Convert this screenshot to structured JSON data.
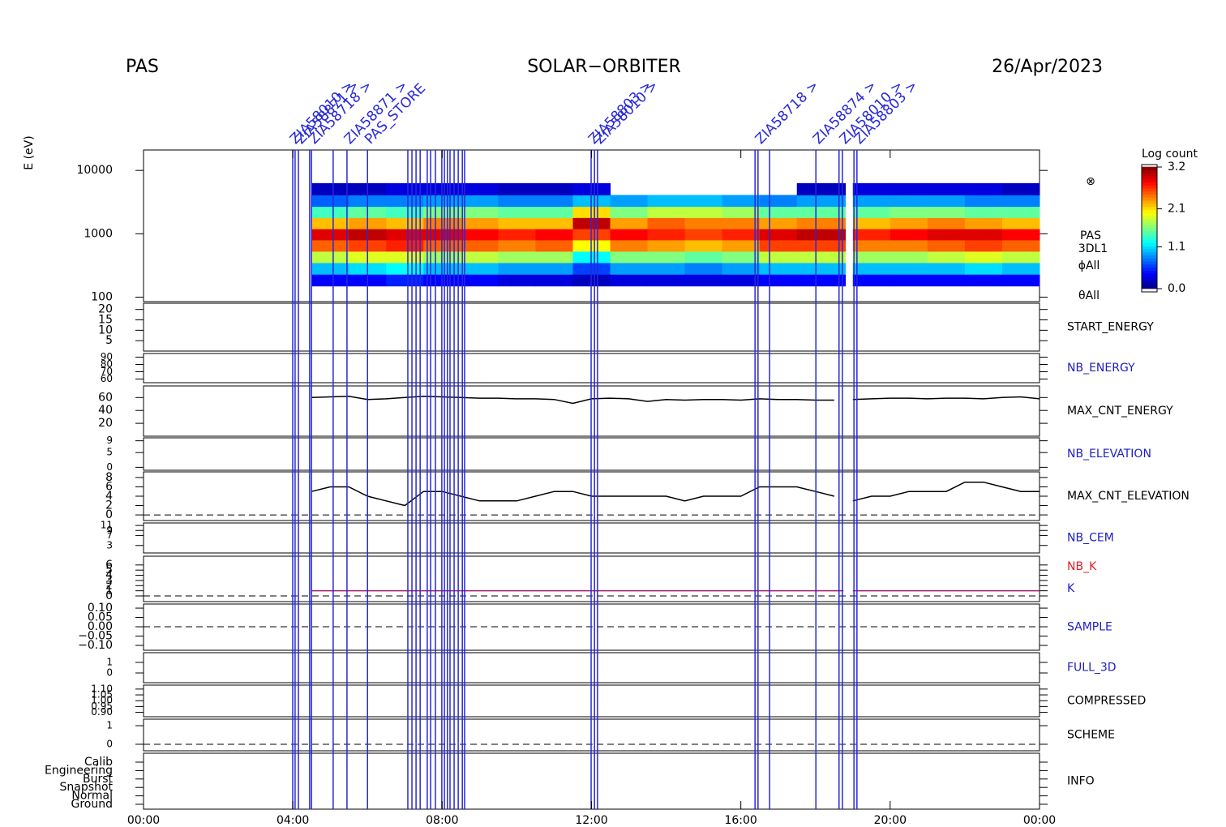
{
  "chart_data": {
    "type": "multipanel",
    "header": {
      "left": "PAS",
      "center": "SOLAR−ORBITER",
      "right": "26/Apr/2023"
    },
    "colorbar": {
      "title": "Log count",
      "ticks": [
        {
          "value": 3.2,
          "label": "3.2"
        },
        {
          "value": 2.1,
          "label": "2.1"
        },
        {
          "value": 1.1,
          "label": "1.1"
        },
        {
          "value": 0,
          "label": "0.0"
        }
      ],
      "lim": [
        0,
        3.2
      ]
    },
    "xlim": [
      0,
      24
    ],
    "xticks": [
      {
        "value": 0,
        "label": "00:00"
      },
      {
        "value": 4,
        "label": "04:00"
      },
      {
        "value": 8,
        "label": "08:00"
      },
      {
        "value": 12,
        "label": "12:00"
      },
      {
        "value": 16,
        "label": "16:00"
      },
      {
        "value": 20,
        "label": "20:00"
      },
      {
        "value": 24,
        "label": "00:00"
      }
    ],
    "panels": [
      {
        "type": "spectrogram",
        "ylabel": "E (eV)",
        "log": true,
        "ylim": [
          85,
          21000
        ],
        "yticks": [
          100,
          1000,
          10000
        ],
        "side_labels": [
          "⊗",
          "PAS",
          "3DL1",
          "ϕAll",
          "θAll"
        ],
        "energy_edges": [
          150,
          230,
          350,
          530,
          800,
          1200,
          1800,
          2700,
          4100,
          6300
        ],
        "t_start": [
          4.5,
          5.5,
          6.5,
          7.5,
          8.5,
          9.5,
          10.5,
          11.5,
          12.5,
          13.5,
          14.5,
          15.5,
          16.5,
          17.5,
          19,
          20,
          21,
          22,
          23
        ],
        "t_end": [
          5.5,
          6.5,
          7.5,
          8.5,
          9.5,
          10.5,
          11.5,
          12.5,
          13.5,
          14.5,
          15.5,
          16.5,
          17.5,
          18.8,
          20,
          21,
          22,
          23,
          24
        ],
        "counts": [
          [
            0.4,
            1.0,
            1.8,
            2.5,
            2.9,
            2.2,
            1.4,
            0.7,
            0.2
          ],
          [
            0.4,
            1.1,
            1.9,
            2.6,
            3.0,
            2.3,
            1.5,
            0.8,
            0.2
          ],
          [
            0.5,
            1.2,
            1.9,
            2.7,
            2.9,
            2.2,
            1.4,
            0.8,
            0.3
          ],
          [
            0.4,
            1.0,
            1.7,
            2.5,
            2.9,
            2.4,
            1.6,
            0.9,
            0.3
          ],
          [
            0.4,
            1.0,
            1.8,
            2.5,
            2.8,
            2.3,
            1.6,
            0.9,
            0.3
          ],
          [
            0.3,
            0.9,
            1.7,
            2.4,
            2.7,
            2.2,
            1.5,
            0.8,
            0.2
          ],
          [
            0.3,
            0.9,
            1.7,
            2.5,
            2.8,
            2.2,
            1.5,
            0.8,
            0.2
          ],
          [
            0.2,
            0.6,
            1.2,
            2.0,
            2.6,
            3.0,
            2.1,
            1.0,
            0.3
          ],
          [
            0.3,
            0.9,
            1.6,
            2.4,
            2.8,
            2.3,
            1.6,
            0.9,
            null
          ],
          [
            0.3,
            0.9,
            1.6,
            2.3,
            2.7,
            2.5,
            1.8,
            1.0,
            null
          ],
          [
            0.3,
            0.8,
            1.5,
            2.2,
            2.6,
            2.4,
            1.8,
            1.0,
            null
          ],
          [
            0.3,
            0.9,
            1.6,
            2.3,
            2.7,
            2.4,
            1.7,
            0.9,
            null
          ],
          [
            0.4,
            1.0,
            1.8,
            2.6,
            2.9,
            2.3,
            1.5,
            0.8,
            null
          ],
          [
            0.4,
            1.0,
            1.8,
            2.6,
            3.0,
            2.4,
            1.5,
            0.9,
            0.2
          ],
          [
            0.4,
            1.0,
            1.7,
            2.4,
            2.7,
            2.2,
            1.5,
            0.9,
            0.3
          ],
          [
            0.4,
            1.0,
            1.7,
            2.4,
            2.8,
            2.3,
            1.6,
            0.9,
            0.3
          ],
          [
            0.4,
            1.0,
            1.8,
            2.5,
            2.9,
            2.4,
            1.6,
            0.9,
            0.3
          ],
          [
            0.4,
            1.1,
            1.9,
            2.6,
            2.9,
            2.3,
            1.5,
            0.8,
            0.3
          ],
          [
            0.4,
            1.0,
            1.8,
            2.5,
            2.8,
            2.2,
            1.5,
            0.8,
            0.2
          ]
        ]
      },
      {
        "type": "empty",
        "names": [
          {
            "text": "START_ENERGY",
            "color": "#000000"
          }
        ],
        "ylim": [
          0,
          23
        ],
        "yticks": [
          5,
          10,
          15,
          20
        ]
      },
      {
        "type": "empty",
        "names": [
          {
            "text": "NB_ENERGY",
            "color": "#2020c0"
          }
        ],
        "ylim": [
          55,
          95
        ],
        "yticks": [
          60,
          70,
          80,
          90
        ]
      },
      {
        "type": "line",
        "names": [
          {
            "text": "MAX_CNT_ENERGY",
            "color": "#000000"
          }
        ],
        "ylim": [
          0,
          78
        ],
        "yticks": [
          20,
          40,
          60
        ],
        "series": [
          {
            "color": "#000000",
            "x": [
              4.5,
              5,
              5.5,
              6,
              6.5,
              7,
              7.5,
              8,
              8.5,
              9,
              9.5,
              10,
              10.5,
              11,
              11.5,
              12,
              12.5,
              13,
              13.5,
              14,
              14.5,
              15,
              15.5,
              16,
              16.5,
              17,
              17.5,
              18,
              18.5,
              18.75,
              19,
              19.5,
              20,
              20.5,
              21,
              21.5,
              22,
              22.5,
              23,
              23.5,
              24
            ],
            "values": [
              60,
              61,
              62,
              57,
              58,
              60,
              62,
              61,
              60,
              59,
              59,
              58,
              58,
              57,
              51,
              58,
              59,
              58,
              54,
              57,
              56,
              57,
              57,
              56,
              58,
              57,
              57,
              56,
              56,
              null,
              57,
              58,
              59,
              59,
              58,
              59,
              59,
              58,
              60,
              61,
              58
            ]
          }
        ]
      },
      {
        "type": "empty",
        "names": [
          {
            "text": "NB_ELEVATION",
            "color": "#2020c0"
          }
        ],
        "ylim": [
          -1,
          10
        ],
        "yticks": [
          0,
          5,
          9
        ]
      },
      {
        "type": "line",
        "names": [
          {
            "text": "MAX_CNT_ELEVATION",
            "color": "#000000"
          }
        ],
        "ylim": [
          -1.2,
          9.2
        ],
        "yticks": [
          0,
          2,
          4,
          6,
          8
        ],
        "dashed_zero": true,
        "series": [
          {
            "color": "#000000",
            "x": [
              4.5,
              5,
              5.5,
              6,
              6.5,
              7,
              7.5,
              8,
              8.5,
              9,
              9.5,
              10,
              10.5,
              11,
              11.5,
              12,
              12.5,
              13,
              13.5,
              14,
              14.5,
              15,
              15.5,
              16,
              16.5,
              17,
              17.5,
              18,
              18.5,
              18.75,
              19,
              19.5,
              20,
              20.5,
              21,
              21.5,
              22,
              22.5,
              23,
              23.5,
              24
            ],
            "values": [
              5,
              6,
              6,
              4,
              3,
              2,
              5,
              5,
              4,
              3,
              3,
              3,
              4,
              5,
              5,
              4,
              4,
              4,
              4,
              4,
              3,
              4,
              4,
              4,
              6,
              6,
              6,
              5,
              4,
              null,
              3,
              4,
              4,
              5,
              5,
              5,
              7,
              7,
              6,
              5,
              5
            ]
          }
        ]
      },
      {
        "type": "empty",
        "names": [
          {
            "text": "NB_CEM",
            "color": "#2020c0"
          }
        ],
        "ylim": [
          0,
          12
        ],
        "yticks": [
          3,
          7,
          9,
          11
        ]
      },
      {
        "type": "line",
        "names": [
          {
            "text": "NB_K",
            "color": "#e02020"
          },
          {
            "text": "K",
            "color": "#2020c0"
          }
        ],
        "ylim": [
          -1.1,
          7.7
        ],
        "yticks": [
          0,
          1,
          2,
          3,
          4,
          5,
          6
        ],
        "dashed_zero": true,
        "series": [
          {
            "color": "#a0206a",
            "x": [
              4.5,
              18.75,
              18.9,
              19,
              24
            ],
            "values": [
              1,
              1,
              null,
              1,
              1
            ]
          }
        ]
      },
      {
        "type": "empty",
        "names": [
          {
            "text": "SAMPLE",
            "color": "#2020c0"
          }
        ],
        "ylim": [
          -0.126,
          0.122
        ],
        "dashed_zero": true,
        "yticks": [
          {
            "value": 0.1,
            "label": "0.10"
          },
          {
            "value": 0.05,
            "label": "0.05"
          },
          {
            "value": 0,
            "label": "0.00"
          },
          {
            "value": -0.05,
            "label": "−0.05"
          },
          {
            "value": -0.1,
            "label": "−0.10"
          }
        ]
      },
      {
        "type": "empty",
        "names": [
          {
            "text": "FULL_3D",
            "color": "#2020c0"
          }
        ],
        "ylim": [
          -0.92,
          1.92
        ],
        "yticks": [
          0,
          1
        ]
      },
      {
        "type": "empty",
        "names": [
          {
            "text": "COMPRESSED",
            "color": "#000000"
          }
        ],
        "ylim": [
          0.862,
          1.134
        ],
        "yticks": [
          {
            "value": 1.1,
            "label": "1.10"
          },
          {
            "value": 1.05,
            "label": "1.05"
          },
          {
            "value": 1,
            "label": "1.00"
          },
          {
            "value": 0.95,
            "label": "0.95"
          },
          {
            "value": 0.9,
            "label": "0.90"
          }
        ]
      },
      {
        "type": "empty",
        "names": [
          {
            "text": "SCHEME",
            "color": "#000000"
          }
        ],
        "ylim": [
          -0.35,
          1.35
        ],
        "yticks": [
          0,
          1
        ],
        "dashed_zero": true
      },
      {
        "type": "empty",
        "names": [
          {
            "text": "INFO",
            "color": "#000000"
          }
        ],
        "ylim": [
          -0.58,
          6.06
        ],
        "yticks": [
          {
            "value": 0,
            "label": "Ground"
          },
          {
            "value": 1,
            "label": "Normal"
          },
          {
            "value": 2,
            "label": "Snapshot"
          },
          {
            "value": 3,
            "label": "Burst"
          },
          {
            "value": 4,
            "label": "Engineering"
          },
          {
            "value": 5,
            "label": "Calib"
          }
        ]
      }
    ],
    "events": [
      {
        "t": 3.996,
        "label": "ZIA58010 >"
      },
      {
        "t": 4.06
      },
      {
        "t": 4.15,
        "label": "ZIA58871 >"
      },
      {
        "t": 4.45
      },
      {
        "t": 4.5,
        "label": "ZIA58718 >"
      },
      {
        "t": 5.08
      },
      {
        "t": 5.45,
        "label": "ZIA58871 >"
      },
      {
        "t": 6.0,
        "label": "PAS_STORE"
      },
      {
        "t": 7.08
      },
      {
        "t": 7.19
      },
      {
        "t": 7.3
      },
      {
        "t": 7.41
      },
      {
        "t": 7.6
      },
      {
        "t": 7.69
      },
      {
        "t": 7.82
      },
      {
        "t": 7.99
      },
      {
        "t": 8.06
      },
      {
        "t": 8.14
      },
      {
        "t": 8.21
      },
      {
        "t": 8.32
      },
      {
        "t": 8.43
      },
      {
        "t": 8.54
      },
      {
        "t": 8.6
      },
      {
        "t": 11.99,
        "label": "ZIA58803 >"
      },
      {
        "t": 12.08
      },
      {
        "t": 12.16,
        "label": "ZIA58010 >"
      },
      {
        "t": 16.38
      },
      {
        "t": 16.46,
        "label": "ZIA58718 >"
      },
      {
        "t": 16.77
      },
      {
        "t": 18.01,
        "label": "ZIA58874 >"
      },
      {
        "t": 18.63
      },
      {
        "t": 18.72,
        "label": "ZIA58010 >"
      },
      {
        "t": 19.03
      },
      {
        "t": 19.11,
        "label": "ZIA58803 >"
      }
    ]
  }
}
